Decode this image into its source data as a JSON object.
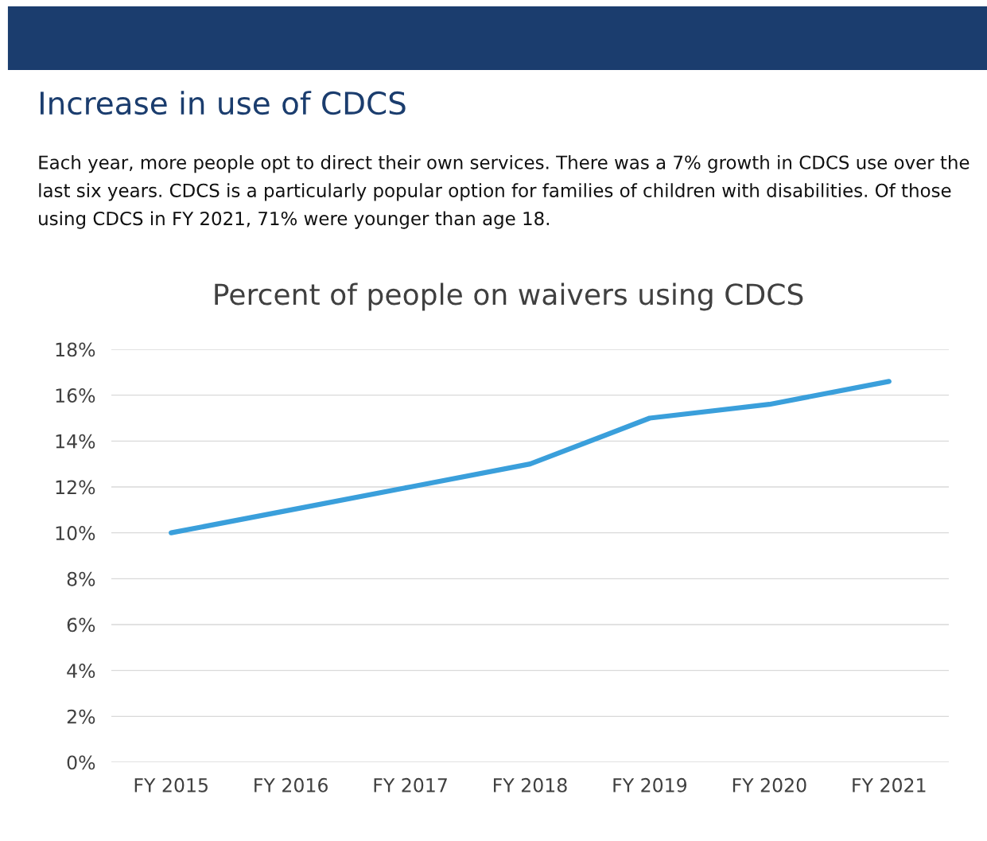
{
  "chart_data": {
    "type": "line",
    "title": "Percent of people on waivers using CDCS",
    "annotations": [
      "Increase in use of CDCS",
      "Each year, more people opt to direct their own services. There was a 7% growth in CDCS use over the last six years. CDCS is a particularly popular option for families of children with disabilities. Of those using CDCS in FY 2021, 71% were younger than age 18."
    ],
    "categories": [
      "FY 2015",
      "FY 2016",
      "FY 2017",
      "FY 2018",
      "FY 2019",
      "FY 2020",
      "FY 2021"
    ],
    "series": [
      {
        "color": "#3a9fdb",
        "values": [
          10,
          11,
          12,
          13,
          15,
          15.6,
          16.6
        ]
      }
    ],
    "ylim": [
      0,
      18
    ],
    "yticks": [
      {
        "value": 0,
        "label": "0%"
      },
      {
        "value": 2,
        "label": "2%"
      },
      {
        "value": 4,
        "label": "4%"
      },
      {
        "value": 6,
        "label": "6%"
      },
      {
        "value": 8,
        "label": "8%"
      },
      {
        "value": 10,
        "label": "10%"
      },
      {
        "value": 12,
        "label": "12%"
      },
      {
        "value": 14,
        "label": "14%"
      },
      {
        "value": 16,
        "label": "16%"
      },
      {
        "value": 18,
        "label": "18%"
      }
    ],
    "grid": "y",
    "legend": false,
    "marker": "none",
    "line_style": "solid"
  }
}
